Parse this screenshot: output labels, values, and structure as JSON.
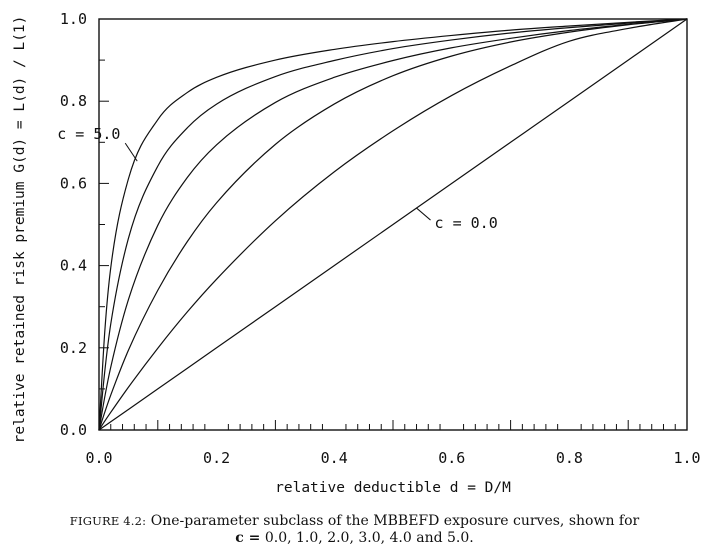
{
  "chart_data": {
    "type": "line",
    "xlabel": "relative deductible d = D/M",
    "ylabel": "relative retained risk premium G(d) = L(d) / L(1)",
    "xlim": [
      0.0,
      1.0
    ],
    "ylim": [
      0.0,
      1.0
    ],
    "x_tick_labels": [
      "0.0",
      "0.2",
      "0.4",
      "0.6",
      "0.8",
      "1.0"
    ],
    "y_tick_labels": [
      "0.0",
      "0.2",
      "0.4",
      "0.6",
      "0.8",
      "1.0"
    ],
    "grid": false,
    "x": [
      0.0,
      0.01,
      0.02,
      0.05,
      0.1,
      0.15,
      0.2,
      0.3,
      0.4,
      0.5,
      0.6,
      0.7,
      0.8,
      0.9,
      1.0
    ],
    "series": [
      {
        "c": 0.0,
        "values": [
          0.0,
          0.01,
          0.02,
          0.05,
          0.1,
          0.15,
          0.2,
          0.3,
          0.4,
          0.5,
          0.6,
          0.7,
          0.8,
          0.9,
          1.0
        ]
      },
      {
        "c": 1.0,
        "values": [
          0.0,
          0.022,
          0.043,
          0.104,
          0.199,
          0.287,
          0.367,
          0.509,
          0.628,
          0.728,
          0.814,
          0.886,
          0.946,
          0.977,
          1.0
        ]
      },
      {
        "c": 2.0,
        "values": [
          0.0,
          0.044,
          0.085,
          0.194,
          0.34,
          0.458,
          0.553,
          0.695,
          0.793,
          0.862,
          0.91,
          0.944,
          0.968,
          0.986,
          1.0
        ]
      },
      {
        "c": 3.0,
        "values": [
          0.0,
          0.082,
          0.153,
          0.317,
          0.498,
          0.614,
          0.694,
          0.797,
          0.858,
          0.899,
          0.93,
          0.953,
          0.972,
          0.987,
          1.0
        ]
      },
      {
        "c": 4.0,
        "values": [
          0.0,
          0.145,
          0.258,
          0.466,
          0.642,
          0.735,
          0.793,
          0.86,
          0.899,
          0.928,
          0.949,
          0.966,
          0.979,
          0.99,
          1.0
        ]
      },
      {
        "c": 5.0,
        "values": [
          0.0,
          0.243,
          0.395,
          0.611,
          0.755,
          0.821,
          0.858,
          0.9,
          0.926,
          0.945,
          0.96,
          0.973,
          0.983,
          0.992,
          1.0
        ]
      }
    ],
    "annotations": [
      {
        "text": "c = 5.0",
        "series_index": 5,
        "x": 0.065
      },
      {
        "text": "c = 0.0",
        "series_index": 0,
        "x": 0.54
      }
    ]
  },
  "caption": {
    "figure_label": "FIGURE 4.2:",
    "line1_text": "One-parameter subclass of the MBBEFD exposure curves, shown for",
    "line2_bold": "c =",
    "line2_text": "0.0, 1.0, 2.0, 3.0, 4.0 and 5.0."
  }
}
